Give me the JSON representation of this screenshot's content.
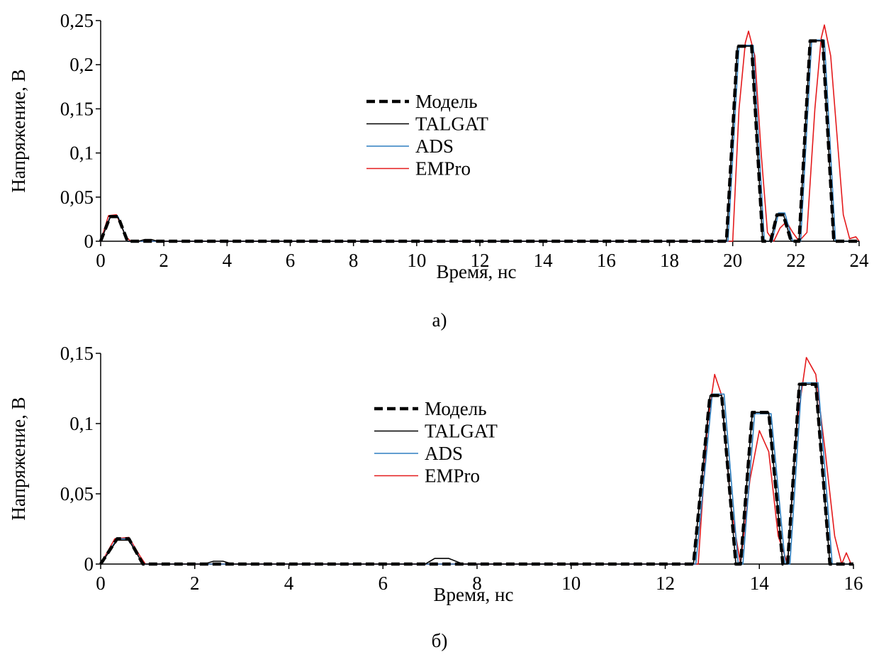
{
  "chart_data": [
    {
      "type": "line",
      "panel_label": "а)",
      "xlabel": "Время, нс",
      "ylabel": "Напряжение, В",
      "xlim": [
        0,
        24
      ],
      "ylim": [
        0,
        0.25
      ],
      "x_ticks": [
        0,
        2,
        4,
        6,
        8,
        10,
        12,
        14,
        16,
        18,
        20,
        22,
        24
      ],
      "x_tick_labels": [
        "0",
        "2",
        "4",
        "6",
        "8",
        "10",
        "12",
        "14",
        "16",
        "18",
        "20",
        "22",
        "24"
      ],
      "y_ticks": [
        0,
        0.05,
        0.1,
        0.15,
        0.2,
        0.25
      ],
      "y_tick_labels": [
        "0",
        "0,05",
        "0,1",
        "0,15",
        "0,2",
        "0,25"
      ],
      "grid": false,
      "legend_position": "center",
      "series": [
        {
          "name": "Модель",
          "color": "#000000",
          "style": "dashed",
          "x": [
            0,
            0.3,
            0.55,
            0.85,
            19.8,
            20.15,
            20.6,
            20.95,
            21.2,
            21.4,
            21.6,
            21.85,
            22.1,
            22.45,
            22.85,
            23.2,
            24
          ],
          "y": [
            0,
            0.028,
            0.028,
            0,
            0,
            0.221,
            0.221,
            0,
            0,
            0.03,
            0.03,
            0,
            0,
            0.227,
            0.227,
            0,
            0
          ]
        },
        {
          "name": "TALGAT",
          "color": "#000000",
          "style": "solid",
          "x": [
            0,
            0.3,
            0.55,
            0.85,
            1.2,
            1.4,
            1.6,
            1.8,
            19.8,
            20.15,
            20.6,
            20.95,
            21.2,
            21.4,
            21.6,
            21.85,
            22.1,
            22.45,
            22.85,
            23.2,
            24
          ],
          "y": [
            0,
            0.027,
            0.027,
            0,
            0,
            0.002,
            0.002,
            0,
            0,
            0.221,
            0.221,
            0,
            0,
            0.031,
            0.031,
            0,
            0,
            0.227,
            0.227,
            0,
            0
          ]
        },
        {
          "name": "ADS",
          "color": "#2e7fc0",
          "style": "solid",
          "x": [
            0,
            0.3,
            0.55,
            0.85,
            19.85,
            20.2,
            20.65,
            21.0,
            21.25,
            21.45,
            21.65,
            21.9,
            22.15,
            22.5,
            22.9,
            23.25,
            24
          ],
          "y": [
            0,
            0.028,
            0.028,
            0,
            0,
            0.222,
            0.222,
            0,
            0,
            0.032,
            0.032,
            0,
            0,
            0.228,
            0.228,
            0,
            0
          ]
        },
        {
          "name": "EMPro",
          "color": "#e41a1c",
          "style": "solid",
          "x": [
            0,
            0.25,
            0.5,
            0.8,
            0.95,
            20.0,
            20.2,
            20.4,
            20.5,
            20.7,
            20.9,
            21.1,
            21.3,
            21.5,
            21.7,
            21.9,
            22.1,
            22.35,
            22.6,
            22.8,
            22.9,
            23.1,
            23.3,
            23.5,
            23.7,
            23.9,
            24
          ],
          "y": [
            0,
            0.029,
            0.03,
            0.005,
            0,
            0,
            0.15,
            0.225,
            0.238,
            0.21,
            0.1,
            0.01,
            0,
            0.015,
            0.022,
            0.01,
            0,
            0.01,
            0.15,
            0.23,
            0.245,
            0.21,
            0.12,
            0.03,
            0.003,
            0.005,
            0
          ]
        }
      ]
    },
    {
      "type": "line",
      "panel_label": "б)",
      "xlabel": "Время, нс",
      "ylabel": "Напряжение, В",
      "xlim": [
        0,
        16
      ],
      "ylim": [
        0,
        0.15
      ],
      "x_ticks": [
        0,
        2,
        4,
        6,
        8,
        10,
        12,
        14,
        16
      ],
      "x_tick_labels": [
        "0",
        "2",
        "4",
        "6",
        "8",
        "10",
        "12",
        "14",
        "16"
      ],
      "y_ticks": [
        0,
        0.05,
        0.1,
        0.15
      ],
      "y_tick_labels": [
        "0",
        "0,05",
        "0,1",
        "0,15"
      ],
      "grid": false,
      "legend_position": "center",
      "series": [
        {
          "name": "Модель",
          "color": "#000000",
          "style": "dashed",
          "x": [
            0,
            0.35,
            0.6,
            0.9,
            12.6,
            12.95,
            13.2,
            13.5,
            13.6,
            13.85,
            14.2,
            14.5,
            14.6,
            14.85,
            15.2,
            15.5,
            16
          ],
          "y": [
            0,
            0.018,
            0.018,
            0,
            0,
            0.12,
            0.12,
            0,
            0,
            0.108,
            0.108,
            0,
            0,
            0.128,
            0.128,
            0,
            0
          ]
        },
        {
          "name": "TALGAT",
          "color": "#000000",
          "style": "solid",
          "x": [
            0,
            0.35,
            0.6,
            0.9,
            2.2,
            2.4,
            2.6,
            2.8,
            6.9,
            7.1,
            7.4,
            7.7,
            12.6,
            12.95,
            13.2,
            13.5,
            13.6,
            13.85,
            14.2,
            14.5,
            14.6,
            14.85,
            15.2,
            15.5,
            16
          ],
          "y": [
            0,
            0.017,
            0.017,
            0,
            0,
            0.002,
            0.002,
            0,
            0,
            0.004,
            0.004,
            0,
            0,
            0.12,
            0.12,
            0,
            0,
            0.108,
            0.108,
            0,
            0,
            0.128,
            0.128,
            0,
            0
          ]
        },
        {
          "name": "ADS",
          "color": "#2e7fc0",
          "style": "solid",
          "x": [
            0,
            0.35,
            0.6,
            0.9,
            12.65,
            13.0,
            13.25,
            13.55,
            13.65,
            13.9,
            14.25,
            14.55,
            14.65,
            14.9,
            15.25,
            15.55,
            16
          ],
          "y": [
            0,
            0.018,
            0.018,
            0,
            0,
            0.121,
            0.121,
            0,
            0,
            0.107,
            0.107,
            0,
            0,
            0.129,
            0.129,
            0,
            0
          ]
        },
        {
          "name": "EMPro",
          "color": "#e41a1c",
          "style": "solid",
          "x": [
            0,
            0.3,
            0.6,
            0.85,
            0.95,
            12.7,
            12.9,
            13.05,
            13.2,
            13.4,
            13.6,
            13.8,
            14.0,
            14.2,
            14.4,
            14.6,
            14.8,
            15.0,
            15.2,
            15.4,
            15.6,
            15.75,
            15.85,
            15.95,
            16
          ],
          "y": [
            0,
            0.018,
            0.019,
            0.005,
            0,
            0,
            0.1,
            0.135,
            0.12,
            0.04,
            0,
            0.06,
            0.095,
            0.08,
            0.02,
            0,
            0.1,
            0.147,
            0.135,
            0.08,
            0.02,
            0,
            0.008,
            0,
            0
          ]
        }
      ]
    }
  ]
}
